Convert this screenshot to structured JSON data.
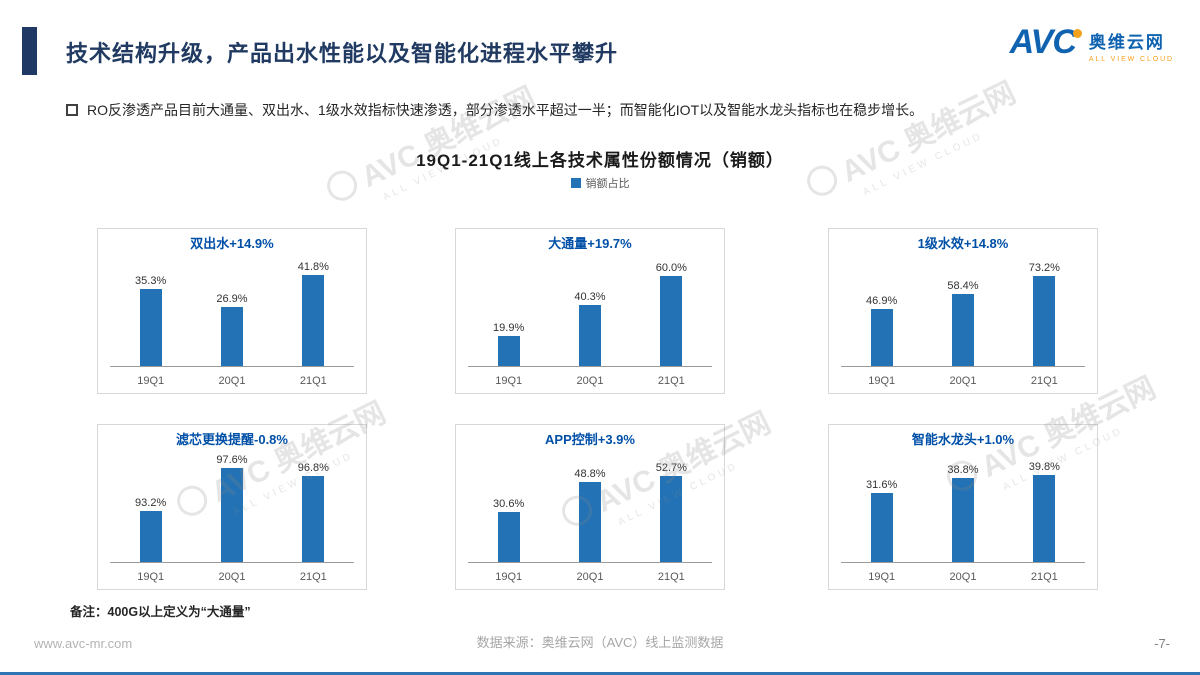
{
  "header": {
    "title": "技术结构升级，产品出水性能以及智能化进程水平攀升",
    "logo": {
      "brand": "AVC",
      "brand_cn": "奥维云网",
      "tagline": "ALL VIEW CLOUD"
    }
  },
  "bullet": "RO反渗透产品目前大通量、双出水、1级水效指标快速渗透，部分渗透水平超过一半；而智能化IOT以及智能水龙头指标也在稳步增长。",
  "chart_data": {
    "type": "bar",
    "title": "19Q1-21Q1线上各技术属性份额情况（销额）",
    "legend": [
      "销额占比"
    ],
    "legend_position": "top-center",
    "categories": [
      "19Q1",
      "20Q1",
      "21Q1"
    ],
    "unit": "%",
    "grid": false,
    "charts": [
      {
        "title": "双出水+14.9%",
        "values": [
          35.3,
          26.9,
          41.8
        ],
        "ylim": [
          0,
          45
        ]
      },
      {
        "title": "大通量+19.7%",
        "values": [
          19.9,
          40.3,
          60.0
        ],
        "ylim": [
          0,
          65
        ]
      },
      {
        "title": "1级水效+14.8%",
        "values": [
          46.9,
          58.4,
          73.2
        ],
        "ylim": [
          0,
          80
        ]
      },
      {
        "title": "滤芯更换提醒-0.8%",
        "values": [
          93.2,
          97.6,
          96.8
        ],
        "ylim": [
          88,
          98
        ]
      },
      {
        "title": "APP控制+3.9%",
        "values": [
          30.6,
          48.8,
          52.7
        ],
        "ylim": [
          0,
          60
        ]
      },
      {
        "title": "智能水龙头+1.0%",
        "values": [
          31.6,
          38.8,
          39.8
        ],
        "ylim": [
          0,
          45
        ]
      }
    ]
  },
  "note": "备注：400G以上定义为“大通量”",
  "footer": {
    "website": "www.avc-mr.com",
    "source": "数据来源：奥维云网（AVC）线上监测数据",
    "page": "-7-"
  },
  "watermark": {
    "brand": "AVC",
    "brand_cn": "奥维云网",
    "tagline": "ALL VIEW CLOUD"
  },
  "colors": {
    "bar": "#2272B5",
    "chart_title": "#0050A8",
    "accent": "#1F3864",
    "brand_blue": "#1063B1",
    "brand_orange": "#F5A11C"
  }
}
